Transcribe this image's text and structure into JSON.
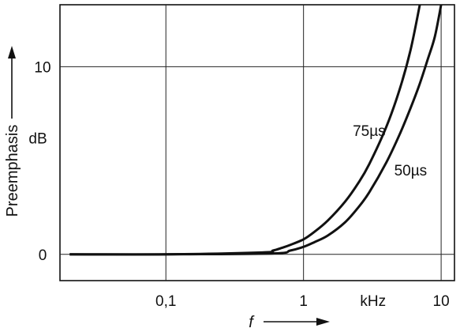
{
  "chart_data": {
    "type": "line",
    "title": "",
    "xlabel": "f",
    "ylabel": "Preemphasis",
    "xscale": "log",
    "xlim": [
      0.017,
      12.5
    ],
    "ylim": [
      -1.4,
      13.3
    ],
    "grid": true,
    "x_tick_labels": [
      "0,1",
      "1",
      "10"
    ],
    "x_tick_values": [
      0.1,
      1,
      10
    ],
    "x_unit_label": "kHz",
    "x_unit_position": 3.2,
    "y_tick_labels": [
      "0",
      "10"
    ],
    "y_tick_values": [
      0,
      10
    ],
    "y_unit_label": "dB",
    "y_unit_position": 6.2,
    "series": [
      {
        "name": "75µs",
        "x": [
          0.02,
          0.1,
          0.5,
          0.6,
          0.7,
          0.8,
          1.0,
          1.2,
          1.5,
          2.0,
          2.5,
          3.0,
          4.0,
          5.0,
          6.0,
          7.0
        ],
        "y": [
          0,
          0,
          0.1,
          0.2,
          0.35,
          0.5,
          0.8,
          1.2,
          1.8,
          2.8,
          3.8,
          4.8,
          6.8,
          8.8,
          10.9,
          13.3
        ]
      },
      {
        "name": "50µs",
        "x": [
          0.02,
          0.1,
          0.6,
          0.8,
          1.0,
          1.2,
          1.5,
          2.0,
          2.5,
          3.0,
          4.0,
          5.0,
          6.0,
          7.0,
          8.0,
          9.0,
          10.0
        ],
        "y": [
          0,
          0,
          0.05,
          0.2,
          0.4,
          0.65,
          1.0,
          1.7,
          2.5,
          3.3,
          4.9,
          6.4,
          7.8,
          9.1,
          10.4,
          11.6,
          13.3
        ]
      }
    ],
    "series_label_positions": [
      {
        "x": 3.0,
        "y": 6.3
      },
      {
        "x": 6.0,
        "y": 4.2
      }
    ]
  }
}
